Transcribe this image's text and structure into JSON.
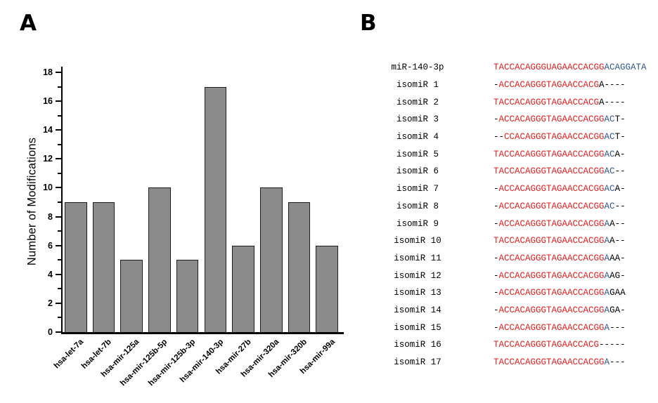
{
  "panel_a": {
    "label": "A"
  },
  "panel_b": {
    "label": "B",
    "palette": {
      "match": "#e3211f",
      "extension": "#31598f",
      "other": "#000000"
    },
    "rows": [
      {
        "name": "miR-140-3p",
        "segments": [
          {
            "c": "match",
            "t": "TACCACAGGGUAGAACCACGG"
          },
          {
            "c": "extension",
            "t": "ACAGGATA"
          }
        ]
      },
      {
        "name": "isomiR 1",
        "segments": [
          {
            "c": "other",
            "t": "-"
          },
          {
            "c": "match",
            "t": "ACCACAGGGTAGAACCACG"
          },
          {
            "c": "other",
            "t": "A----"
          }
        ]
      },
      {
        "name": "isomiR 2",
        "segments": [
          {
            "c": "match",
            "t": "TACCACAGGGTAGAACCACG"
          },
          {
            "c": "other",
            "t": "A----"
          }
        ]
      },
      {
        "name": "isomiR 3",
        "segments": [
          {
            "c": "other",
            "t": "-"
          },
          {
            "c": "match",
            "t": "ACCACAGGGTAGAACCACGG"
          },
          {
            "c": "extension",
            "t": "AC"
          },
          {
            "c": "other",
            "t": "T-"
          }
        ]
      },
      {
        "name": "isomiR 4",
        "segments": [
          {
            "c": "other",
            "t": "--"
          },
          {
            "c": "match",
            "t": "CCACAGGGTAGAACCACGG"
          },
          {
            "c": "extension",
            "t": "AC"
          },
          {
            "c": "other",
            "t": "T-"
          }
        ]
      },
      {
        "name": "isomiR 5",
        "segments": [
          {
            "c": "match",
            "t": "TACCACAGGGTAGAACCACGG"
          },
          {
            "c": "extension",
            "t": "AC"
          },
          {
            "c": "other",
            "t": "A-"
          }
        ]
      },
      {
        "name": "isomiR 6",
        "segments": [
          {
            "c": "match",
            "t": "TACCACAGGGTAGAACCACGG"
          },
          {
            "c": "extension",
            "t": "AC"
          },
          {
            "c": "other",
            "t": "--"
          }
        ]
      },
      {
        "name": "isomiR 7",
        "segments": [
          {
            "c": "other",
            "t": "-"
          },
          {
            "c": "match",
            "t": "ACCACAGGGTAGAACCACGG"
          },
          {
            "c": "extension",
            "t": "AC"
          },
          {
            "c": "other",
            "t": "A-"
          }
        ]
      },
      {
        "name": "isomiR 8",
        "segments": [
          {
            "c": "other",
            "t": "-"
          },
          {
            "c": "match",
            "t": "ACCACAGGGTAGAACCACGG"
          },
          {
            "c": "extension",
            "t": "AC"
          },
          {
            "c": "other",
            "t": "--"
          }
        ]
      },
      {
        "name": "isomiR 9",
        "segments": [
          {
            "c": "other",
            "t": "-"
          },
          {
            "c": "match",
            "t": "ACCACAGGGTAGAACCACGG"
          },
          {
            "c": "extension",
            "t": "A"
          },
          {
            "c": "other",
            "t": "A--"
          }
        ]
      },
      {
        "name": "isomiR 10",
        "segments": [
          {
            "c": "match",
            "t": "TACCACAGGGTAGAACCACGG"
          },
          {
            "c": "extension",
            "t": "A"
          },
          {
            "c": "other",
            "t": "A--"
          }
        ]
      },
      {
        "name": "isomiR 11",
        "segments": [
          {
            "c": "other",
            "t": "-"
          },
          {
            "c": "match",
            "t": "ACCACAGGGTAGAACCACGG"
          },
          {
            "c": "extension",
            "t": "A"
          },
          {
            "c": "other",
            "t": "AA-"
          }
        ]
      },
      {
        "name": "isomiR 12",
        "segments": [
          {
            "c": "other",
            "t": "-"
          },
          {
            "c": "match",
            "t": "ACCACAGGGTAGAACCACGG"
          },
          {
            "c": "extension",
            "t": "A"
          },
          {
            "c": "other",
            "t": "AG-"
          }
        ]
      },
      {
        "name": "isomiR 13",
        "segments": [
          {
            "c": "other",
            "t": "-"
          },
          {
            "c": "match",
            "t": "ACCACAGGGTAGAACCACGG"
          },
          {
            "c": "extension",
            "t": "A"
          },
          {
            "c": "other",
            "t": "GAA"
          }
        ]
      },
      {
        "name": "isomiR 14",
        "segments": [
          {
            "c": "other",
            "t": "-"
          },
          {
            "c": "match",
            "t": "ACCACAGGGTAGAACCACGG"
          },
          {
            "c": "extension",
            "t": "A"
          },
          {
            "c": "other",
            "t": "GA-"
          }
        ]
      },
      {
        "name": "isomiR 15",
        "segments": [
          {
            "c": "other",
            "t": "-"
          },
          {
            "c": "match",
            "t": "ACCACAGGGTAGAACCACGG"
          },
          {
            "c": "extension",
            "t": "A"
          },
          {
            "c": "other",
            "t": "---"
          }
        ]
      },
      {
        "name": "isomiR 16",
        "segments": [
          {
            "c": "match",
            "t": "TACCACAGGGTAGAACCACG"
          },
          {
            "c": "other",
            "t": "-----"
          }
        ]
      },
      {
        "name": "isomiR 17",
        "segments": [
          {
            "c": "match",
            "t": "TACCACAGGGTAGAACCACGG"
          },
          {
            "c": "extension",
            "t": "A"
          },
          {
            "c": "other",
            "t": "---"
          }
        ]
      }
    ]
  },
  "chart_data": {
    "type": "bar",
    "title": "",
    "xlabel": "",
    "ylabel": "Number of Modifications",
    "ylim": [
      0,
      18
    ],
    "yticks": [
      0,
      2,
      4,
      6,
      8,
      10,
      12,
      14,
      16,
      18
    ],
    "minor_ticks": [
      1,
      3,
      5,
      7,
      9,
      11,
      13,
      15,
      17
    ],
    "grid": false,
    "legend": false,
    "categories": [
      "hsa-let-7a",
      "hsa-let-7b",
      "hsa-mir-125a",
      "hsa-mir-125b-5p",
      "hsa-mir-125b-3p",
      "hsa-mir-140-3p",
      "hsa-mir-27b",
      "hsa-mir-320a",
      "hsa-mir-320b",
      "hsa-mir-99a"
    ],
    "values": [
      9,
      9,
      5,
      10,
      5,
      17,
      6,
      10,
      9,
      6
    ],
    "bar_fill": "#8b8b8b",
    "bar_border": "#1c1c1c",
    "axis_color": "#000000"
  }
}
